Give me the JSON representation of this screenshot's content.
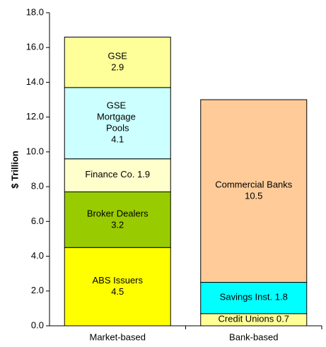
{
  "chart_data": {
    "type": "stacked_bar",
    "y_label": "$ Trillion",
    "categories": [
      "Market-based",
      "Bank-based"
    ],
    "series": [
      {
        "name": "ABS Issuers",
        "color": "#ffff00",
        "values": [
          4.5,
          null
        ]
      },
      {
        "name": "Broker Dealers",
        "color": "#99cc00",
        "values": [
          3.2,
          null
        ]
      },
      {
        "name": "Finance Co.",
        "color": "#ffffcc",
        "values": [
          1.9,
          null
        ]
      },
      {
        "name": "GSE Mortgage Pools",
        "color": "#ccffff",
        "values": [
          4.1,
          null
        ]
      },
      {
        "name": "GSE",
        "color": "#ffff99",
        "values": [
          2.9,
          null
        ]
      },
      {
        "name": "Credit Unions",
        "color": "#ffff99",
        "values": [
          null,
          0.7
        ]
      },
      {
        "name": "Savings Inst.",
        "color": "#00ffff",
        "values": [
          null,
          1.8
        ]
      },
      {
        "name": "Commercial Banks",
        "color": "#ffcc99",
        "values": [
          null,
          10.5
        ]
      }
    ],
    "ylim": [
      0,
      18
    ],
    "yticks": [
      {
        "value": 0,
        "label": "0.0"
      },
      {
        "value": 2,
        "label": "2.0"
      },
      {
        "value": 4,
        "label": "4.0"
      },
      {
        "value": 6,
        "label": "6.0"
      },
      {
        "value": 8,
        "label": "8.0"
      },
      {
        "value": 10,
        "label": "10.0"
      },
      {
        "value": 12,
        "label": "12.0"
      },
      {
        "value": 14,
        "label": "14.0"
      },
      {
        "value": 16,
        "label": "16.0"
      },
      {
        "value": 18,
        "label": "18.0"
      }
    ],
    "grid": false
  }
}
